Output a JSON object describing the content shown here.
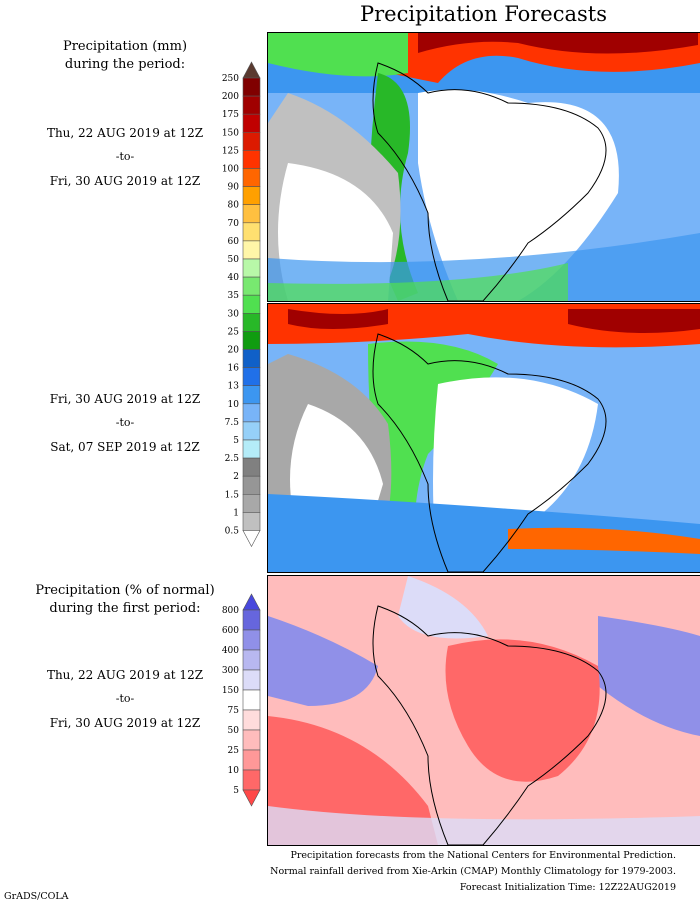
{
  "title": "Precipitation Forecasts",
  "period1": {
    "header": [
      "Precipitation (mm)",
      "during the period:"
    ],
    "start": "Thu, 22 AUG 2019 at 12Z",
    "to": "-to-",
    "end": "Fri, 30 AUG 2019 at 12Z"
  },
  "period2": {
    "start": "Fri, 30 AUG 2019 at 12Z",
    "to": "-to-",
    "end": "Sat, 07 SEP 2019 at 12Z"
  },
  "anomaly": {
    "header": [
      "Precipitation (% of normal)",
      "during the first period:"
    ],
    "start": "Thu, 22 AUG 2019 at 12Z",
    "to": "-to-",
    "end": "Fri, 30 AUG 2019 at 12Z"
  },
  "precip_colorbar": {
    "labels": [
      "250",
      "200",
      "175",
      "150",
      "125",
      "100",
      "90",
      "80",
      "70",
      "60",
      "50",
      "40",
      "35",
      "30",
      "25",
      "20",
      "16",
      "13",
      "10",
      "7.5",
      "5",
      "2.5",
      "2",
      "1.5",
      "1",
      "0.5"
    ],
    "colors": [
      "#800000",
      "#a00000",
      "#c00000",
      "#dc1a00",
      "#ff3300",
      "#ff6600",
      "#ffa000",
      "#ffc040",
      "#ffe070",
      "#fff6a8",
      "#b8f8a8",
      "#78e870",
      "#50e050",
      "#28b828",
      "#109c10",
      "#1060c8",
      "#2070e8",
      "#3c96f0",
      "#78b4f8",
      "#96d0f8",
      "#b4ecf8",
      "#808080",
      "#969696",
      "#a8a8a8",
      "#c0c0c0"
    ],
    "over_color": "#5a3a30",
    "under_color": "#ffffff"
  },
  "anomaly_colorbar": {
    "labels": [
      "800",
      "600",
      "400",
      "300",
      "150",
      "75",
      "50",
      "25",
      "10",
      "5"
    ],
    "colors": [
      "#6666dd",
      "#9090e8",
      "#b8b8f0",
      "#dcdcf8",
      "#ffffff",
      "#ffdcdc",
      "#ffbcbc",
      "#ff9898",
      "#ff6868"
    ],
    "over_color": "#4848dd",
    "under_color": "#ff4848"
  },
  "footer": [
    "Precipitation forecasts from the National Centers for Environmental Prediction.",
    "Normal rainfall derived from Xie-Arkin (CMAP) Monthly Climatology for 1979-2003.",
    "Forecast Initialization Time: 12Z22AUG2019"
  ],
  "credit": "GrADS/COLA"
}
